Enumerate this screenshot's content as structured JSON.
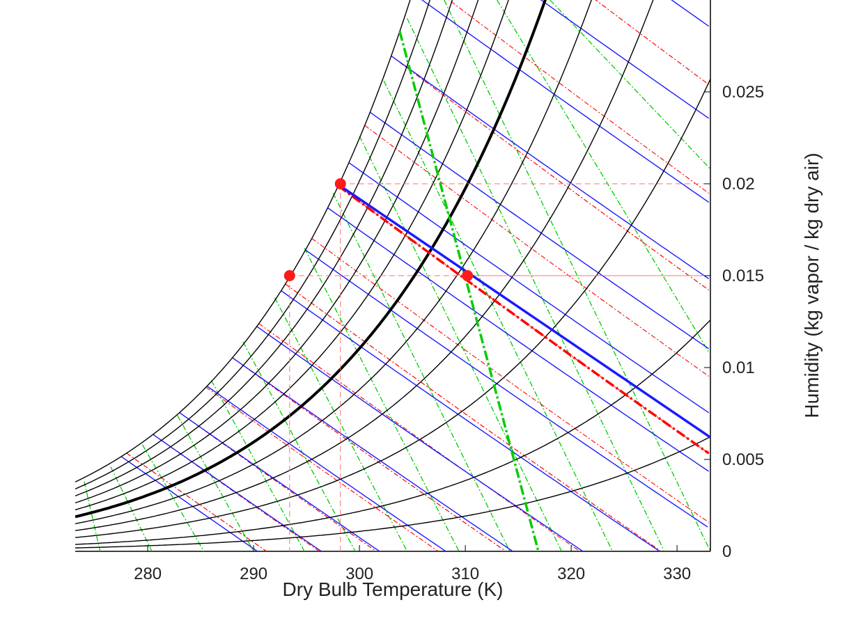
{
  "chart_data": {
    "type": "line",
    "title": "",
    "xlabel": "Dry Bulb Temperature (K)",
    "ylabel": "Humidity (kg vapor / kg dry air)",
    "xlim": [
      273.15,
      333.15
    ],
    "ylim": [
      0,
      0.03
    ],
    "x_ticks": [
      280,
      290,
      300,
      310,
      320,
      330
    ],
    "x_tick_labels": [
      "280",
      "290",
      "300",
      "310",
      "320",
      "330"
    ],
    "y_ticks": [
      0,
      0.005,
      0.01,
      0.015,
      0.02,
      0.025
    ],
    "y_tick_labels": [
      "0",
      "0.005",
      "0.01",
      "0.015",
      "0.02",
      "0.025"
    ],
    "y_axis_side": "right",
    "grid": false,
    "legend": "none",
    "relative_humidity_curves": [
      0.05,
      0.1,
      0.2,
      0.3,
      0.4,
      0.5,
      0.6,
      0.7,
      0.8,
      0.9,
      1.0
    ],
    "highlighted_relative_humidity": 0.5,
    "wet_bulb_lines_K": [
      278,
      283,
      288,
      293,
      298,
      303,
      308,
      313
    ],
    "highlighted_wet_bulb_K": 298,
    "enthalpy_lines": [
      {
        "x_sat": 277.5,
        "x_end": 291.2
      },
      {
        "x_sat": 280.5,
        "x_end": 296.0
      },
      {
        "x_sat": 283.0,
        "x_end": 299.7
      },
      {
        "x_sat": 285.6,
        "x_end": 304.0
      },
      {
        "x_sat": 288.0,
        "x_end": 308.0
      },
      {
        "x_sat": 290.3,
        "x_end": 312.2
      },
      {
        "x_sat": 292.6,
        "x_end": 316.3
      },
      {
        "x_sat": 294.9,
        "x_end": 320.7
      },
      {
        "x_sat": 297.0,
        "x_end": 325.0
      },
      {
        "x_sat": 299.0,
        "x_end": 328.8
      },
      {
        "x_sat": 301.0,
        "x_end": 333.15
      },
      {
        "x_sat": 303.0,
        "x_end": 333.15
      },
      {
        "x_sat": 305.0,
        "x_end": 333.15
      },
      {
        "x_sat": 307.0,
        "x_end": 333.15
      },
      {
        "x_sat": 309.0,
        "x_end": 333.15
      },
      {
        "x_sat": 311.0,
        "x_end": 333.15
      },
      {
        "x_sat": 313.0,
        "x_end": 333.15
      },
      {
        "x_sat": 315.0,
        "x_end": 333.15
      }
    ],
    "specific_volume_lines": [
      {
        "x_top": 274.0,
        "y_top": 0.0038,
        "x_bottom": 275.5
      },
      {
        "x_top": 276.5,
        "y_top": 0.0046,
        "x_bottom": 280.4
      },
      {
        "x_top": 279.5,
        "y_top": 0.0058,
        "x_bottom": 285.3
      },
      {
        "x_top": 282.8,
        "y_top": 0.0074,
        "x_bottom": 290.0
      },
      {
        "x_top": 286.0,
        "y_top": 0.0093,
        "x_bottom": 294.8
      },
      {
        "x_top": 289.0,
        "y_top": 0.0114,
        "x_bottom": 299.6
      },
      {
        "x_top": 292.0,
        "y_top": 0.0138,
        "x_bottom": 304.5
      },
      {
        "x_top": 294.8,
        "y_top": 0.0165,
        "x_bottom": 309.4
      },
      {
        "x_top": 297.5,
        "y_top": 0.0195,
        "x_bottom": 314.2
      },
      {
        "x_top": 300.0,
        "y_top": 0.0226,
        "x_bottom": 319.1
      },
      {
        "x_top": 302.3,
        "y_top": 0.0256,
        "x_bottom": 323.9
      },
      {
        "x_top": 304.5,
        "y_top": 0.029,
        "x_bottom": 328.8
      },
      {
        "x_top": 308.0,
        "y_top": 0.03,
        "x_bottom": 333.15
      },
      {
        "x_top": 313.0,
        "y_top": 0.03,
        "x_bottom": 333.15,
        "y_bottom": 0.0107
      },
      {
        "x_top": 318.0,
        "y_top": 0.03,
        "x_bottom": 333.15,
        "y_bottom": 0.0208
      }
    ],
    "highlighted_specific_volume_line": {
      "x_top": 303.8,
      "y_top": 0.0283,
      "x_bottom": 316.9,
      "y_bottom": 0
    },
    "highlighted_enthalpy_line": {
      "x_start": 298.4,
      "y_start": 0.0198,
      "x_end": 333.15,
      "y_end": 0.0062
    },
    "state_points": [
      {
        "x": 293.4,
        "y": 0.015
      },
      {
        "x": 298.2,
        "y": 0.02
      },
      {
        "x": 310.2,
        "y": 0.015
      }
    ],
    "colors": {
      "rh_curve": "#000000",
      "enthalpy": "#1a1aff",
      "wet_bulb": "#ff0000",
      "specific_volume": "#00cc00",
      "state_point": "#ff1a1a",
      "guide": "#ff7070"
    }
  }
}
